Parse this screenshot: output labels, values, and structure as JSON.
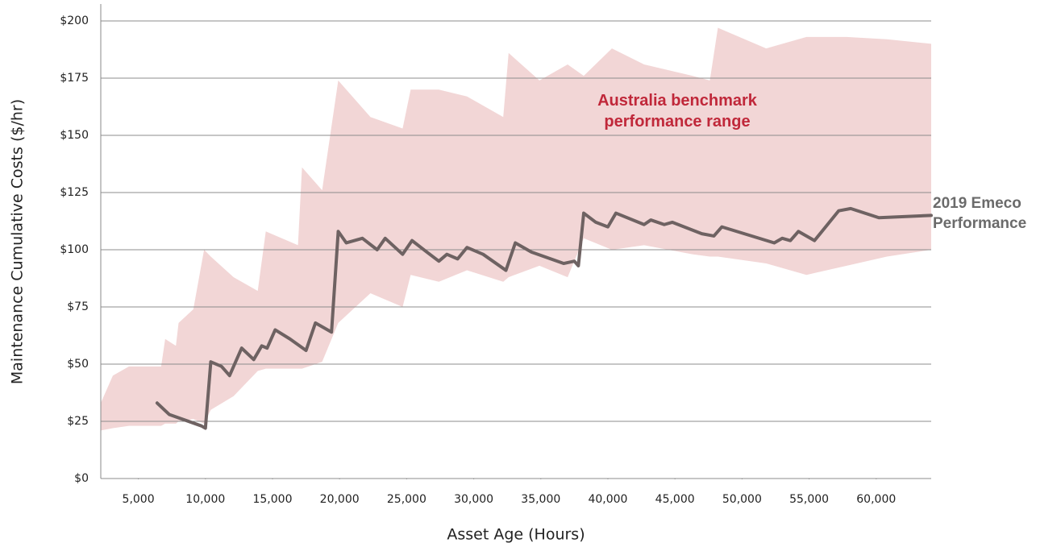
{
  "chart_data": {
    "type": "line",
    "xlabel": "Asset Age (Hours)",
    "ylabel": "Maintenance Cumulative Costs ($/hr)",
    "xlim": [
      2200,
      64100
    ],
    "ylim": [
      0,
      200
    ],
    "xticks": [
      {
        "value": 5000,
        "label": "5,000"
      },
      {
        "value": 10000,
        "label": "10,000"
      },
      {
        "value": 15000,
        "label": "15,000"
      },
      {
        "value": 20000,
        "label": "20,000"
      },
      {
        "value": 25000,
        "label": "25,000"
      },
      {
        "value": 30000,
        "label": "30,000"
      },
      {
        "value": 35000,
        "label": "35,000"
      },
      {
        "value": 40000,
        "label": "40,000"
      },
      {
        "value": 45000,
        "label": "45,000"
      },
      {
        "value": 50000,
        "label": "50,000"
      },
      {
        "value": 55000,
        "label": "55,000"
      },
      {
        "value": 60000,
        "label": "60,000"
      }
    ],
    "yticks": [
      {
        "value": 0,
        "label": "$0"
      },
      {
        "value": 25,
        "label": "$25"
      },
      {
        "value": 50,
        "label": "$50"
      },
      {
        "value": 75,
        "label": "$75"
      },
      {
        "value": 100,
        "label": "$100"
      },
      {
        "value": 125,
        "label": "$125"
      },
      {
        "value": 150,
        "label": "$150"
      },
      {
        "value": 175,
        "label": "$175"
      },
      {
        "value": 200,
        "label": "$200"
      }
    ],
    "grid": true,
    "band": {
      "name": "Australia benchmark performance range",
      "color": "#f2d6d6",
      "x": [
        2200,
        3100,
        4300,
        6700,
        7000,
        7800,
        8000,
        9100,
        9900,
        10400,
        12100,
        13900,
        14500,
        16900,
        17200,
        18700,
        19900,
        22300,
        24700,
        25300,
        27400,
        29500,
        32200,
        32600,
        34900,
        37000,
        38200,
        40300,
        42700,
        46300,
        47600,
        48200,
        51800,
        54800,
        57800,
        60800,
        64100
      ],
      "upper": [
        33,
        45,
        49,
        49,
        61,
        58,
        68,
        74,
        100,
        97,
        88,
        82,
        108,
        102,
        136,
        126,
        174,
        158,
        153,
        170,
        170,
        167,
        158,
        186,
        174,
        181,
        176,
        188,
        181,
        176,
        174,
        197,
        188,
        193,
        193,
        192,
        190
      ],
      "lower": [
        21,
        22,
        23,
        23,
        24,
        24,
        25,
        26,
        24,
        30,
        36,
        47,
        48,
        48,
        48,
        51,
        68,
        81,
        75,
        89,
        86,
        91,
        86,
        88,
        93,
        88,
        105,
        100,
        102,
        98,
        97,
        97,
        94,
        89,
        93,
        97,
        100
      ]
    },
    "series": [
      {
        "name": "2019 Emeco Performance",
        "color": "#6e6262",
        "x": [
          6400,
          7300,
          9700,
          10000,
          10400,
          11200,
          11800,
          12700,
          13600,
          14200,
          14600,
          15200,
          16300,
          17500,
          18200,
          19400,
          19900,
          20500,
          21700,
          22800,
          23400,
          24700,
          25400,
          26500,
          27400,
          28000,
          28800,
          29500,
          30700,
          32400,
          33100,
          34300,
          36700,
          37500,
          37800,
          38200,
          39100,
          40000,
          40600,
          42700,
          43200,
          44200,
          44800,
          47000,
          47900,
          48500,
          52400,
          53000,
          53600,
          54200,
          55400,
          57200,
          58100,
          60200,
          64100
        ],
        "values": [
          33,
          28,
          23,
          22,
          51,
          49,
          45,
          57,
          52,
          58,
          57,
          65,
          61,
          56,
          68,
          64,
          108,
          103,
          105,
          100,
          105,
          98,
          104,
          99,
          95,
          98,
          96,
          101,
          98,
          91,
          103,
          99,
          94,
          95,
          93,
          116,
          112,
          110,
          116,
          111,
          113,
          111,
          112,
          107,
          106,
          110,
          103,
          105,
          104,
          108,
          104,
          117,
          118,
          114,
          115
        ]
      }
    ]
  }
}
